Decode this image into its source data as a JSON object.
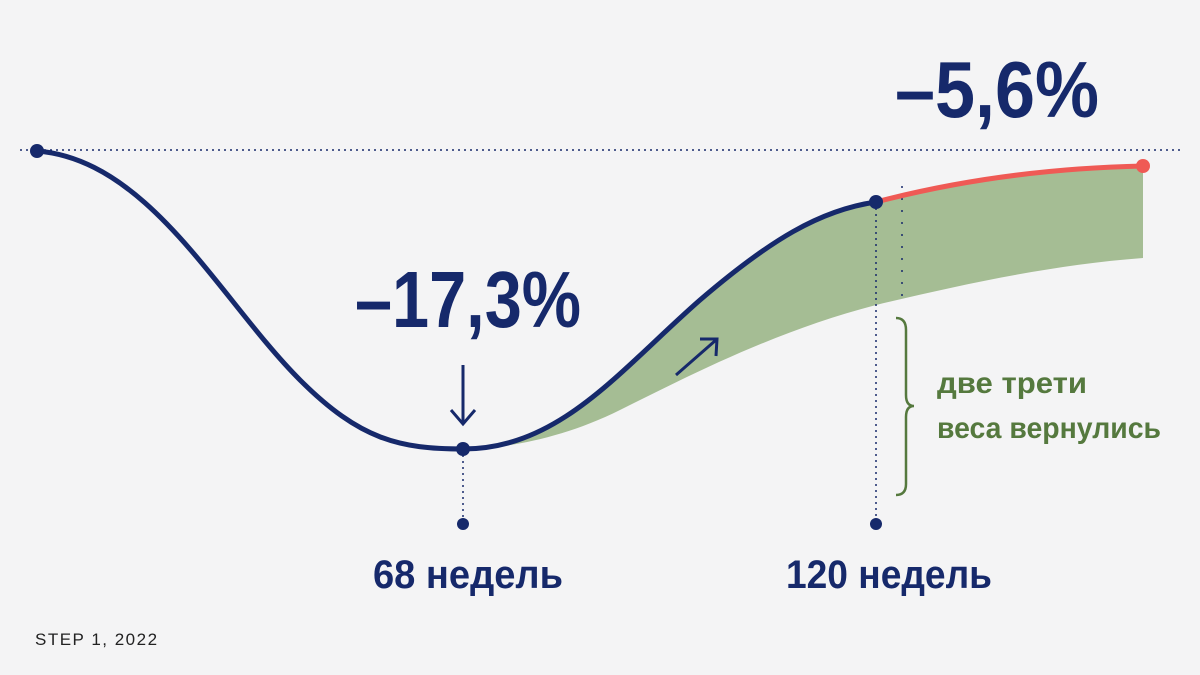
{
  "annotations": {
    "minimum": "–17,3%",
    "end": "–5,6%"
  },
  "milestones": [
    "68 недель",
    "120 недель"
  ],
  "note": [
    "две трети",
    "веса вернулись"
  ],
  "source": "STEP 1, 2022"
}
